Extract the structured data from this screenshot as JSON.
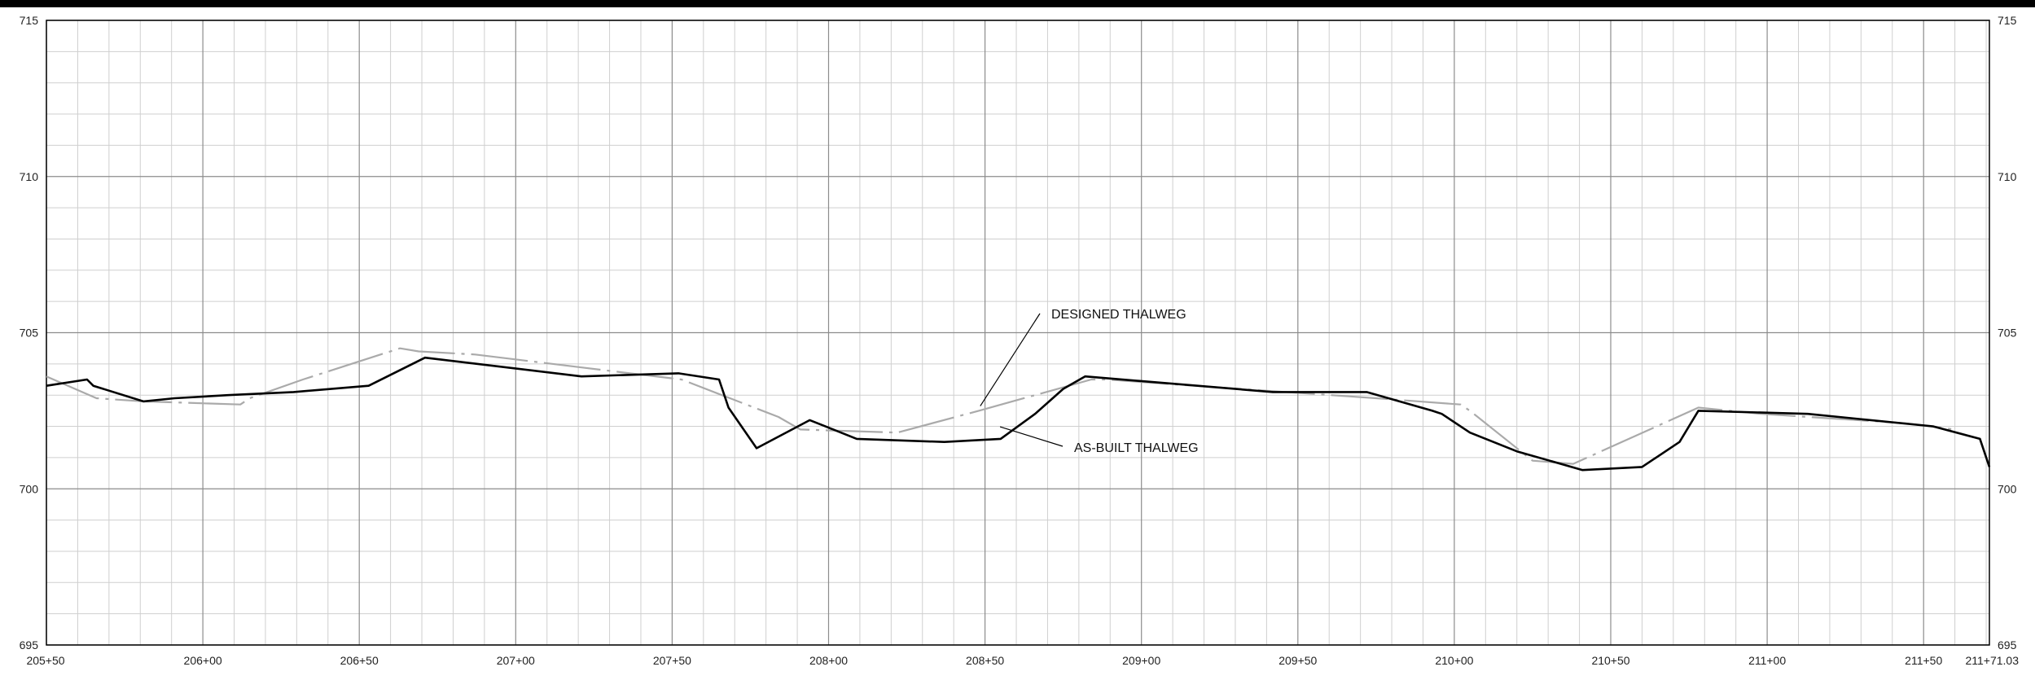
{
  "chart_data": {
    "type": "line",
    "title": "",
    "xlabel": "",
    "ylabel": "",
    "xlim": [
      20550,
      21171.03
    ],
    "ylim": [
      695,
      715
    ],
    "grid": true,
    "x_tick_labels": [
      "205+50",
      "206+00",
      "206+50",
      "207+00",
      "207+50",
      "208+00",
      "208+50",
      "209+00",
      "209+50",
      "210+00",
      "210+50",
      "211+00",
      "211+50",
      "211+71.03"
    ],
    "y_tick_labels": [
      "695",
      "700",
      "705",
      "710",
      "715"
    ],
    "colors": {
      "designed": "#aaaaaa",
      "as_built": "#000000",
      "grid_major": "#8c8c8c",
      "grid_minor": "#cfcfcf"
    },
    "series": [
      {
        "name": "DESIGNED THALWEG",
        "style": "dash-dot",
        "x": [
          20550,
          20566,
          20581,
          20612,
          20615,
          20632,
          20663,
          20669,
          20687,
          20720,
          20753,
          20784,
          20791,
          20822,
          20848,
          20884,
          20889,
          20903,
          20917,
          20975,
          21002,
          21005,
          21025,
          21038,
          21078,
          21098,
          21144,
          21160
        ],
        "y": [
          703.6,
          702.9,
          702.8,
          702.7,
          702.9,
          703.5,
          704.5,
          704.4,
          704.3,
          703.9,
          703.5,
          702.3,
          701.9,
          701.8,
          702.5,
          703.5,
          703.5,
          703.4,
          703.3,
          702.9,
          702.7,
          702.5,
          700.9,
          700.8,
          702.6,
          702.4,
          702.1,
          701.9
        ]
      },
      {
        "name": "AS-BUILT THALWEG",
        "style": "solid",
        "x": [
          20550,
          20563,
          20565,
          20581,
          20591,
          20608,
          20629,
          20653,
          20671,
          20721,
          20752,
          20765,
          20768,
          20777,
          20794,
          20809,
          20837,
          20855,
          20866,
          20875,
          20882,
          20942,
          20972,
          20993,
          20996,
          21005,
          21020,
          21041,
          21060,
          21072,
          21078,
          21113,
          21153,
          21168,
          21171.03
        ],
        "y": [
          703.3,
          703.5,
          703.3,
          702.8,
          702.9,
          703.0,
          703.1,
          703.3,
          704.2,
          703.6,
          703.7,
          703.5,
          702.6,
          701.3,
          702.2,
          701.6,
          701.5,
          701.6,
          702.4,
          703.2,
          703.6,
          703.1,
          703.1,
          702.5,
          702.4,
          701.8,
          701.2,
          700.6,
          700.7,
          701.5,
          702.5,
          702.4,
          702.0,
          701.6,
          700.7
        ]
      }
    ],
    "annotations": [
      {
        "text": "DESIGNED THALWEG",
        "target_series": 0,
        "at_x": 20855,
        "at_y": 702.6
      },
      {
        "text": "AS-BUILT THALWEG",
        "target_series": 1,
        "at_x": 20866,
        "at_y": 702.3
      }
    ]
  }
}
